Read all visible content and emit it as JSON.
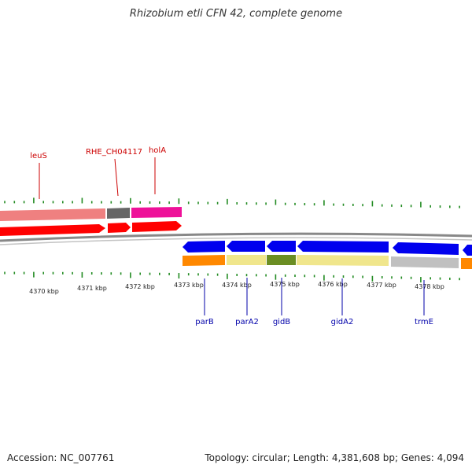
{
  "title": "Rhizobium etli CFN 42, complete genome",
  "accession": "Accession: NC_007761",
  "summary": "Topology: circular; Length: 4,381,608 bp; Genes: 4,094",
  "colors": {
    "tick": "#228b22",
    "backbone": "#888888",
    "label_red": "#cc0000",
    "label_blue": "#0000aa",
    "cds_forward": "#ff0000",
    "cds_reverse": "#0000ee",
    "gene_pink": "#ef8080",
    "gene_gray": "#666666",
    "gene_magenta": "#ee1199",
    "cog_orange": "#ff8800",
    "cog_khaki": "#f0e68c",
    "cog_olive": "#6b8e23",
    "cog_lightgray": "#c0c0c0"
  },
  "kbp_labels": [
    "4370 kbp",
    "4371 kbp",
    "4372 kbp",
    "4373 kbp",
    "4374 kbp",
    "4375 kbp",
    "4376 kbp",
    "4377 kbp",
    "4378 kbp"
  ],
  "top_genes": [
    {
      "name": "leuS"
    },
    {
      "name": "RHE_CH04117"
    },
    {
      "name": "holA"
    }
  ],
  "bottom_genes": [
    {
      "name": "parB"
    },
    {
      "name": "parA2"
    },
    {
      "name": "gidB"
    },
    {
      "name": "gidA2"
    },
    {
      "name": "trmE"
    }
  ]
}
